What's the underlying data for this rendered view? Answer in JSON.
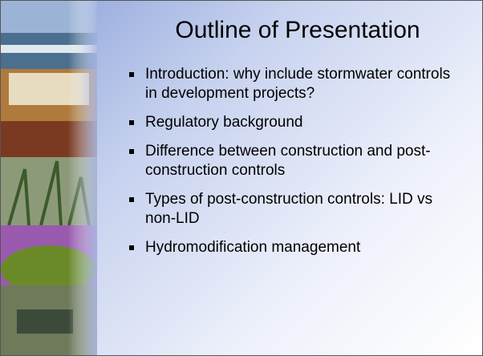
{
  "slide": {
    "title": "Outline of Presentation",
    "bullets": [
      "Introduction: why include stormwater controls in development projects?",
      "Regulatory background",
      "Difference between construction and post-construction controls",
      "Types of post-construction controls: LID vs non-LID",
      "Hydromodification management"
    ]
  }
}
